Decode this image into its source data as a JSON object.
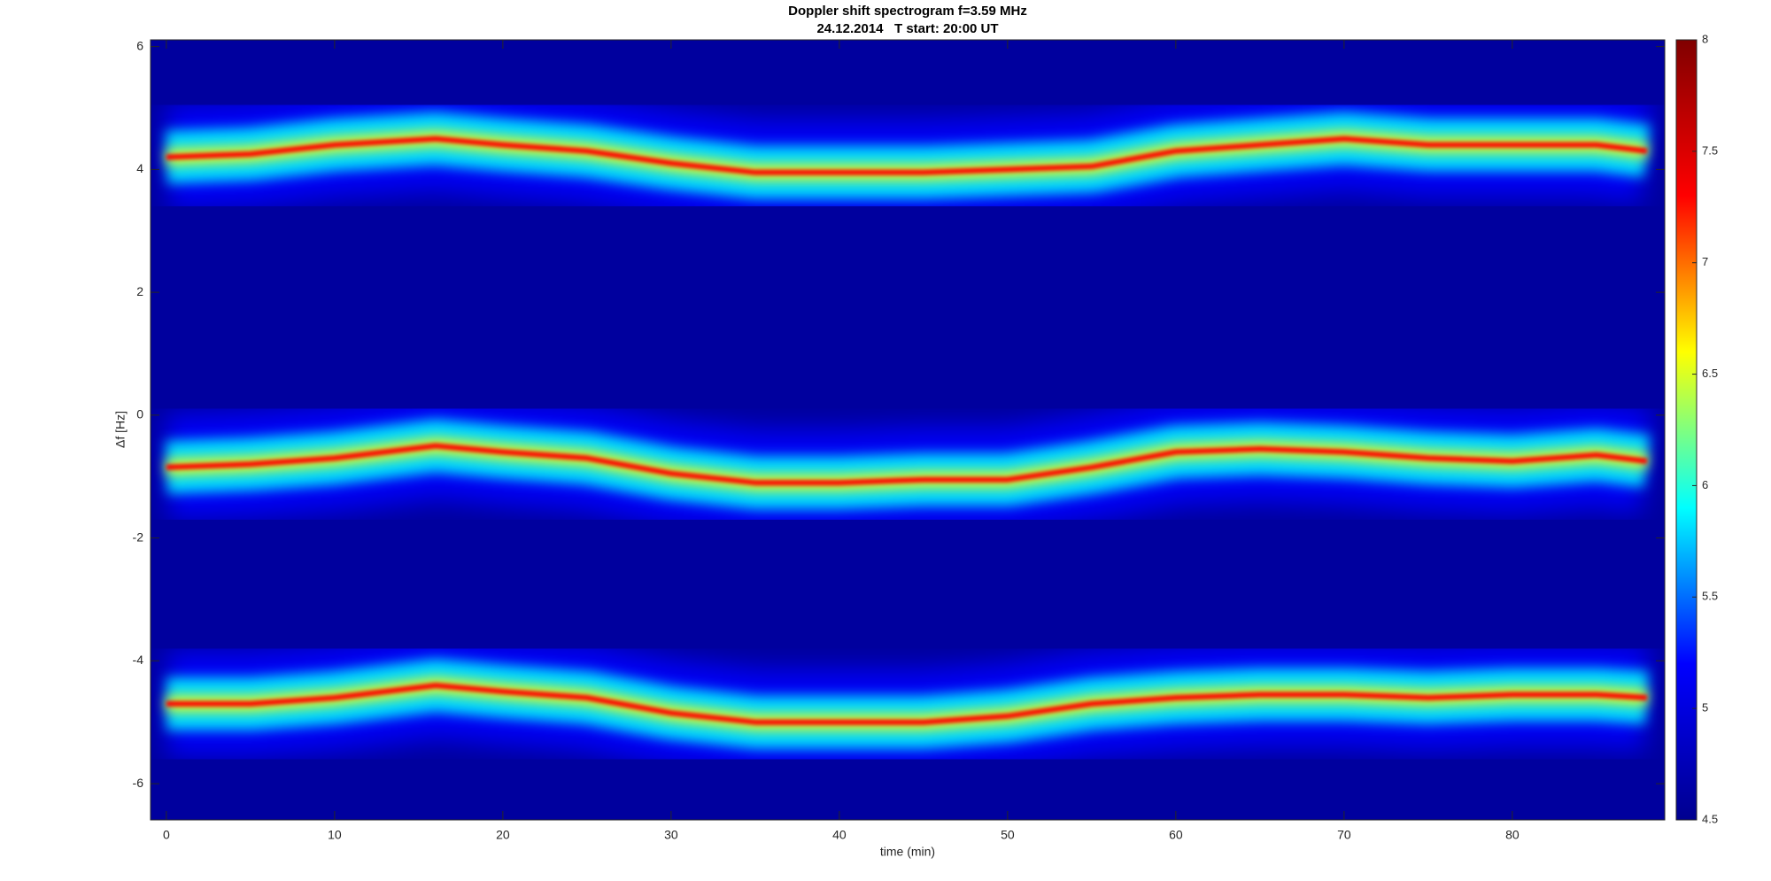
{
  "chart_data": {
    "type": "spectrogram",
    "title": "Doppler shift spectrogram f=3.59 MHz",
    "subtitle": "24.12.2014   T start: 20:00 UT",
    "x_label": "time (min)",
    "y_label": "Δf [Hz]",
    "x": [
      0,
      5,
      10,
      16,
      20,
      25,
      30,
      35,
      40,
      45,
      50,
      55,
      60,
      65,
      70,
      75,
      80,
      85,
      88
    ],
    "series": [
      {
        "values": [
          4.2,
          4.25,
          4.4,
          4.5,
          4.4,
          4.3,
          4.1,
          3.95,
          3.95,
          3.95,
          4.0,
          4.05,
          4.3,
          4.4,
          4.5,
          4.4,
          4.4,
          4.4,
          4.3
        ]
      },
      {
        "values": [
          -0.85,
          -0.8,
          -0.7,
          -0.5,
          -0.6,
          -0.7,
          -0.95,
          -1.1,
          -1.1,
          -1.05,
          -1.05,
          -0.85,
          -0.6,
          -0.55,
          -0.6,
          -0.7,
          -0.75,
          -0.65,
          -0.75
        ]
      },
      {
        "values": [
          -4.7,
          -4.7,
          -4.6,
          -4.4,
          -4.5,
          -4.6,
          -4.85,
          -5.0,
          -5.0,
          -5.0,
          -4.9,
          -4.7,
          -4.6,
          -4.55,
          -4.55,
          -4.6,
          -4.55,
          -4.55,
          -4.6
        ]
      }
    ],
    "xlim": [
      -0.94,
      89.06
    ],
    "xticks": [
      0,
      10,
      20,
      30,
      40,
      50,
      60,
      70,
      80
    ],
    "ylim": [
      -6.59,
      6.11
    ],
    "yticks": [
      -6,
      -4,
      -2,
      0,
      2,
      4,
      6
    ],
    "clim": [
      4.5,
      8
    ],
    "cticks": [
      4.5,
      5,
      5.5,
      6,
      6.5,
      7,
      7.5,
      8
    ],
    "colormap": [
      "#00008f",
      "#0000ff",
      "#00ffff",
      "#ffff00",
      "#ff0000",
      "#800000"
    ],
    "background_color": "#00009e"
  }
}
